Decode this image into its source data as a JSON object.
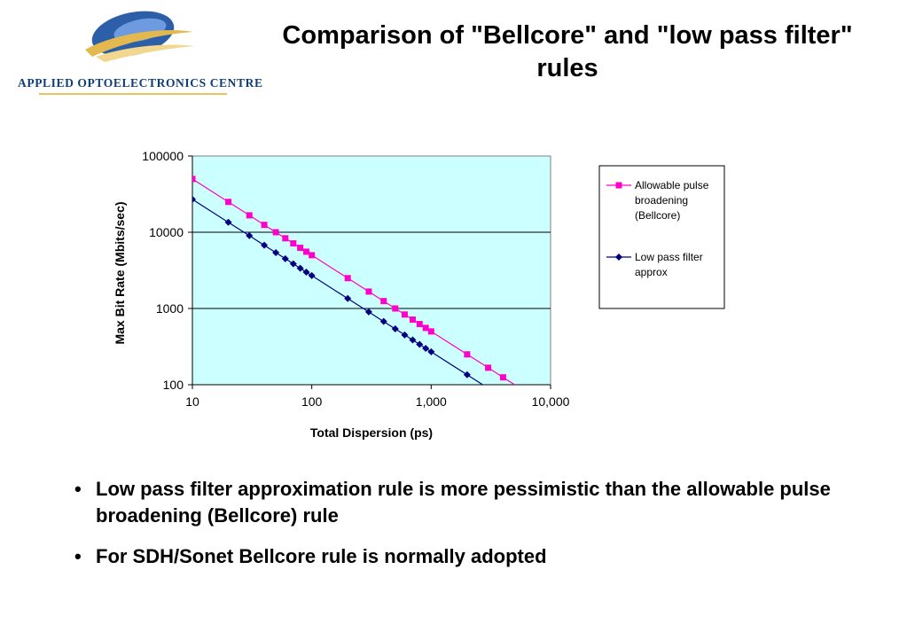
{
  "logo": {
    "text": "Applied Optoelectronics Centre",
    "icon": "stylized-eye-logo-icon"
  },
  "slide": {
    "title": "Comparison of \"Bellcore\" and \"low pass filter\" rules",
    "bullets": [
      "Low pass filter approximation rule is more pessimistic than the allowable pulse broadening (Bellcore) rule",
      "For SDH/Sonet Bellcore rule is normally adopted"
    ]
  },
  "chart_data": {
    "type": "line",
    "xlabel": "Total Dispersion (ps)",
    "ylabel": "Max Bit Rate (Mbits/sec)",
    "xscale": "log",
    "yscale": "log",
    "xlim": [
      10,
      10000
    ],
    "ylim": [
      100,
      100000
    ],
    "xticks": [
      "10",
      "100",
      "1,000",
      "10,000"
    ],
    "yticks": [
      "100",
      "1000",
      "10000",
      "100000"
    ],
    "grid": "horizontal",
    "plot_background": "#ccffff",
    "legend_position": "right",
    "series": [
      {
        "name": "Allowable pulse broadening (Bellcore)",
        "color": "#ff00cc",
        "marker": "square",
        "x": [
          10,
          20,
          30,
          40,
          50,
          60,
          70,
          80,
          90,
          100,
          200,
          300,
          400,
          500,
          600,
          700,
          800,
          900,
          1000,
          2000,
          3000,
          4000
        ],
        "y": [
          50000,
          25000,
          16667,
          12500,
          10000,
          8333,
          7143,
          6250,
          5556,
          5000,
          2500,
          1667,
          1250,
          1000,
          833,
          714,
          625,
          556,
          500,
          250,
          167,
          125
        ]
      },
      {
        "name": "Low pass filter approx",
        "color": "#000080",
        "marker": "diamond",
        "x": [
          10,
          20,
          30,
          40,
          50,
          60,
          70,
          80,
          90,
          100,
          200,
          300,
          400,
          500,
          600,
          700,
          800,
          900,
          1000,
          2000
        ],
        "y": [
          27000,
          13500,
          9000,
          6750,
          5400,
          4500,
          3857,
          3375,
          3000,
          2700,
          1350,
          900,
          675,
          540,
          450,
          386,
          338,
          300,
          270,
          135
        ]
      }
    ]
  }
}
